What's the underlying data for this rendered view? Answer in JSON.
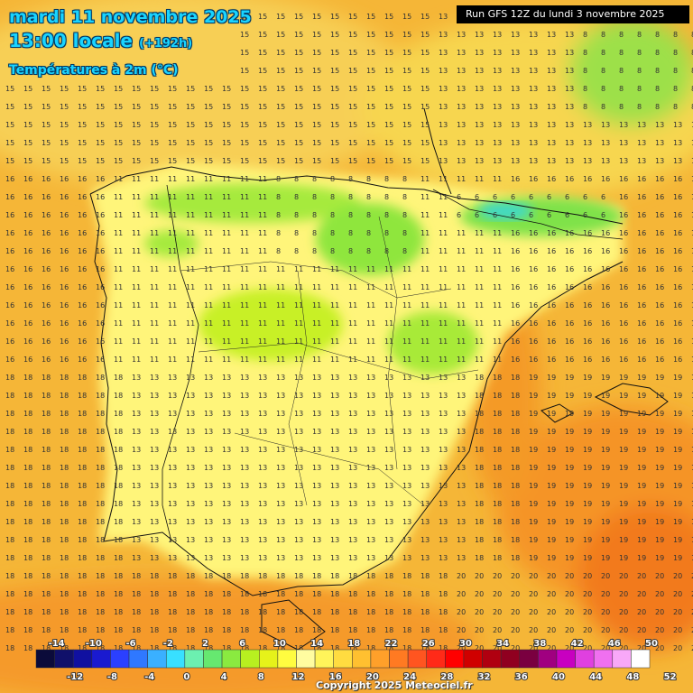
{
  "header": {
    "date": "mardi 11 novembre 2025",
    "time": "13:00 locale",
    "lead": "(+192h)",
    "variable": "Températures à 2m (°C)",
    "run": "Run GFS 12Z du lundi 3 novembre 2025"
  },
  "footer": {
    "copyright": "Copyright 2025 Meteociel.fr"
  },
  "colorscale": {
    "top_ticks": [
      "-14",
      "-10",
      "-6",
      "-2",
      "2",
      "6",
      "10",
      "14",
      "18",
      "22",
      "26",
      "30",
      "34",
      "38",
      "42",
      "46",
      "50"
    ],
    "bottom_ticks": [
      "-12",
      "-8",
      "-4",
      "0",
      "4",
      "8",
      "12",
      "16",
      "20",
      "24",
      "28",
      "32",
      "36",
      "40",
      "44",
      "48",
      "52"
    ],
    "colors": [
      "#0b0b3a",
      "#10106a",
      "#1010a0",
      "#1a1ad0",
      "#2b40ff",
      "#2f78ff",
      "#3ab0ff",
      "#38e0ff",
      "#6cf0b0",
      "#66e870",
      "#8aea40",
      "#b8f020",
      "#e6f21a",
      "#fffc40",
      "#fffca0",
      "#fff45a",
      "#ffdc40",
      "#ffc030",
      "#ffa02a",
      "#ff7a22",
      "#ff5520",
      "#ff2a18",
      "#ff0000",
      "#d00000",
      "#b00010",
      "#900020",
      "#7a0040",
      "#a00080",
      "#c800c0",
      "#e040e0",
      "#f070f0",
      "#f8a8f8",
      "#ffffff"
    ]
  },
  "map": {
    "region": "Iberian Peninsula",
    "land_color": "#fff780",
    "sea_color": "#f5b637",
    "warm_sea_color": "#f58a20",
    "cool_color": "#7be845",
    "cold_color": "#3ad6c8"
  }
}
